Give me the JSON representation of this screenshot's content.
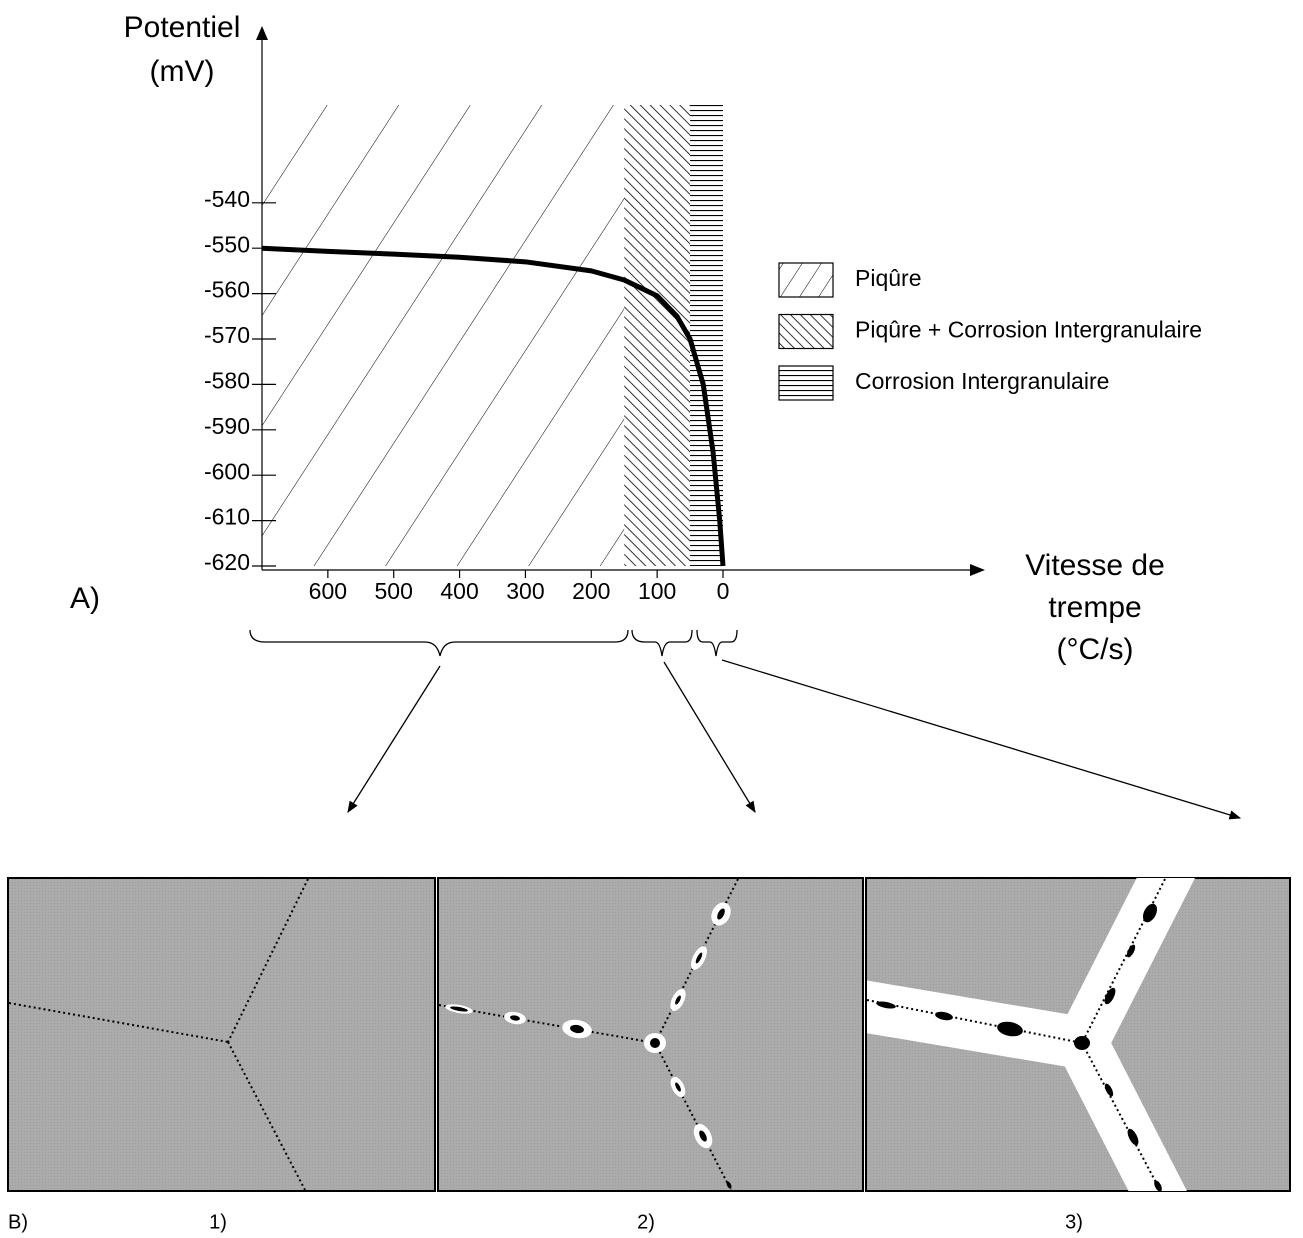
{
  "chart_data": {
    "type": "line",
    "y_label": [
      "Potentiel",
      "(mV)"
    ],
    "x_label": [
      "Vitesse de",
      "trempe",
      "(°C/s)"
    ],
    "xlim": [
      700,
      0
    ],
    "ylim": [
      -620,
      -520
    ],
    "xticks": [
      600,
      500,
      400,
      300,
      200,
      100,
      0
    ],
    "yticks": [
      -540,
      -550,
      -560,
      -570,
      -580,
      -590,
      -600,
      -610,
      -620
    ],
    "series": [
      {
        "color": "#000000",
        "x": [
          700,
          600,
          500,
          400,
          300,
          200,
          150,
          100,
          70,
          50,
          30,
          15,
          5,
          0
        ],
        "values": [
          -550,
          -550.7,
          -551.3,
          -552,
          -553,
          -555,
          -557,
          -560.5,
          -565,
          -570,
          -580,
          -595,
          -610,
          -620
        ]
      }
    ],
    "regions": [
      {
        "name": "Piqûre",
        "from": 700,
        "to": 150,
        "hatch": "sparse-diagonal"
      },
      {
        "name": "Piqûre + Corrosion Intergranulaire",
        "from": 150,
        "to": 50,
        "hatch": "dense-backslash"
      },
      {
        "name": "Corrosion Intergranulaire",
        "from": 50,
        "to": 0,
        "hatch": "horizontal"
      }
    ]
  },
  "figure": {
    "panel_a_label": "A)",
    "panel_b_label": "B)",
    "panels": [
      "1)",
      "2)",
      "3)"
    ]
  }
}
